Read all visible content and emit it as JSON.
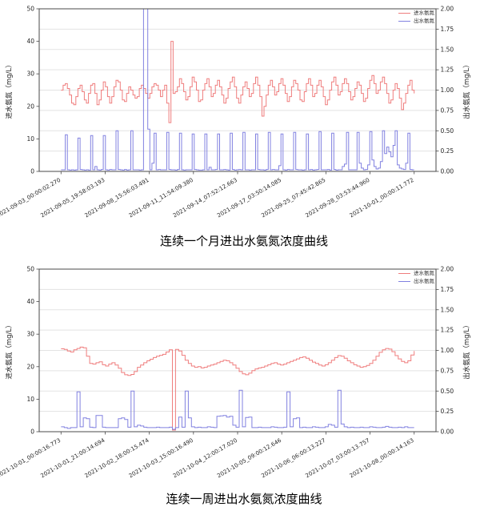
{
  "page": {
    "background": "#ffffff"
  },
  "style": {
    "influent_color": "#ef7d7d",
    "effluent_color": "#8181e0",
    "grid_color": "#e3e3e3",
    "spine_color": "#4a4a4a",
    "tick_text_color": "#262626"
  },
  "chart_data": [
    {
      "type": "line",
      "title": "连续一个月进出水氨氮浓度曲线",
      "xlabel": "",
      "ylabel_left": "进水氨氮（mg/L）",
      "ylabel_right": "出水氨氮（mg/L）",
      "ylim_left": [
        0,
        50
      ],
      "ylim_right": [
        0.0,
        2.0
      ],
      "yticks_left": [
        "0",
        "10",
        "20",
        "30",
        "40",
        "50"
      ],
      "yticks_right": [
        "0.00",
        "0.25",
        "0.50",
        "0.75",
        "1.00",
        "1.25",
        "1.50",
        "1.75",
        "2.00"
      ],
      "x_tick_labels": [
        "2021-09-03_00:00:02.270",
        "2021-09-05_19:58:03.193",
        "2021-09-08_15:56:03.491",
        "2021-09-11_11:54:09.380",
        "2021-09-14_07:52:12.663",
        "2021-09-17_03:50:14.085",
        "2021-09-25_07:45:42.865",
        "2021-09-28_03:53:44.960",
        "2021-10-01_00:00:11.772"
      ],
      "grid": "horizontal gridlines at every 0.25 of right axis",
      "legend_position": "upper right",
      "series": [
        {
          "name": "进水氨氮",
          "axis": "left",
          "color": "#ef7d7d",
          "values": [
            25,
            26.5,
            27,
            25.5,
            23.5,
            21,
            20.5,
            23,
            25.5,
            26.5,
            24.5,
            22,
            21,
            24,
            26.5,
            27,
            24,
            20.5,
            22,
            25,
            27.5,
            26,
            23,
            21,
            23,
            26,
            28,
            27.5,
            25,
            22,
            21.5,
            24,
            26,
            25,
            23.5,
            22.5,
            23,
            25.5,
            26.5,
            25.5,
            24,
            22.5,
            24,
            26,
            27,
            26.5,
            25,
            23,
            25,
            26.5,
            21,
            15,
            40,
            24,
            24.5,
            26,
            28.5,
            27,
            24.5,
            22,
            23,
            26,
            29,
            27.5,
            25,
            21.5,
            22,
            25,
            27,
            28.5,
            26,
            23,
            24,
            26.5,
            28,
            26,
            23.5,
            21,
            22.5,
            25.5,
            27.5,
            29,
            26,
            22.5,
            21,
            23.5,
            26,
            27.5,
            25.5,
            23,
            24,
            27,
            29,
            26.5,
            23,
            17,
            20,
            23.5,
            26.5,
            28,
            26,
            23.5,
            24.5,
            27,
            28.5,
            26.5,
            24,
            21.5,
            23,
            26,
            28,
            27,
            25,
            22,
            21.5,
            24.5,
            27,
            28.5,
            26.5,
            23,
            24,
            26.5,
            28,
            26,
            23,
            20.5,
            22,
            25,
            27.5,
            29,
            26.5,
            23.5,
            24.5,
            27,
            28.5,
            27,
            24.5,
            22,
            23,
            25.5,
            27.5,
            26.5,
            24,
            21.5,
            22.5,
            25.5,
            28,
            29.5,
            27,
            24,
            25,
            27.5,
            29,
            27,
            24,
            21,
            22,
            25,
            27,
            25.5,
            22.5,
            19,
            21,
            24,
            26.5,
            28,
            25,
            24
          ]
        },
        {
          "name": "出水氨氮",
          "axis": "right",
          "color": "#8181e0",
          "values": [
            0.02,
            0.02,
            0.45,
            0.02,
            0.016,
            0.02,
            0.016,
            0.02,
            0.41,
            0.024,
            0.02,
            0.016,
            0.02,
            0.016,
            0.44,
            0.02,
            0.06,
            0.02,
            0.016,
            0.024,
            0.44,
            0.02,
            0.016,
            0.024,
            0.02,
            0.02,
            0.5,
            0.024,
            0.02,
            0.016,
            0.024,
            0.016,
            0.02,
            0.5,
            0.02,
            0.02,
            0.02,
            0.016,
            0.02,
            2.02,
            2.02,
            0.52,
            0.02,
            0.1,
            0.47,
            0.02,
            0.024,
            0.02,
            0.02,
            0.02,
            0.48,
            0.024,
            0.02,
            0.02,
            0.016,
            0.024,
            0.47,
            0.02,
            0.016,
            0.02,
            0.02,
            0.02,
            0.46,
            0.024,
            0.02,
            0.016,
            0.016,
            0.02,
            0.46,
            0.02,
            0.05,
            0.02,
            0.02,
            0.024,
            0.46,
            0.02,
            0.02,
            0.024,
            0.02,
            0.016,
            0.47,
            0.024,
            0.016,
            0.02,
            0.024,
            0.02,
            0.48,
            0.02,
            0.02,
            0.016,
            0.02,
            0.02,
            0.46,
            0.024,
            0.02,
            0.02,
            0.016,
            0.024,
            0.48,
            0.02,
            0.024,
            0.02,
            0.02,
            0.07,
            0.46,
            0.02,
            0.016,
            0.024,
            0.02,
            0.02,
            0.48,
            0.024,
            0.02,
            0.02,
            0.016,
            0.02,
            0.46,
            0.02,
            0.024,
            0.016,
            0.02,
            0.024,
            0.49,
            0.02,
            0.02,
            0.02,
            0.024,
            0.016,
            0.47,
            0.024,
            0.016,
            0.02,
            0.02,
            0.06,
            0.09,
            0.48,
            0.02,
            0.02,
            0.02,
            0.02,
            0.48,
            0.1,
            0.04,
            0.02,
            0.024,
            0.08,
            0.49,
            0.14,
            0.06,
            0.03,
            0.04,
            0.12,
            0.5,
            0.22,
            0.3,
            0.24,
            0.18,
            0.32,
            0.5,
            0.08,
            0.04,
            0.03,
            0.024,
            0.1,
            0.47,
            0.024,
            0.02,
            0.02
          ]
        }
      ]
    },
    {
      "type": "line",
      "title": "连续一周进出水氨氮浓度曲线",
      "xlabel": "",
      "ylabel_left": "进水氨氮（mg/L）",
      "ylabel_right": "出水氨氮（mg/L）",
      "ylim_left": [
        0,
        50
      ],
      "ylim_right": [
        0.0,
        2.0
      ],
      "yticks_left": [
        "0",
        "10",
        "20",
        "30",
        "40",
        "50"
      ],
      "yticks_right": [
        "0.00",
        "0.25",
        "0.50",
        "0.75",
        "1.00",
        "1.25",
        "1.50",
        "1.75",
        "2.00"
      ],
      "x_tick_labels": [
        "2021-10-01_00:00:16.773",
        "2021-10-01_21:00:14.694",
        "2021-10-02_18:00:15.474",
        "2021-10-03_15:00:16.490",
        "2021-10-04_12:00:17.020",
        "2021-10-05_09:00:12.646",
        "2021-10-06_06:00:13.227",
        "2021-10-07_03:00:13.757",
        "2021-10-08_00:00:14.163"
      ],
      "grid": "horizontal gridlines at every 0.25 of right axis",
      "legend_position": "upper right",
      "series": [
        {
          "name": "进水氨氮",
          "axis": "left",
          "color": "#ef7d7d",
          "values": [
            25.5,
            25.3,
            24.8,
            24.5,
            25.2,
            25.6,
            26,
            25.8,
            23.2,
            21,
            20.8,
            21.2,
            21.5,
            20.6,
            20.2,
            20.8,
            21.2,
            20.5,
            19.5,
            18.2,
            17.5,
            17.3,
            17.6,
            18.5,
            19.8,
            20.5,
            21.2,
            21.8,
            22.3,
            22.8,
            23.2,
            23.5,
            23.8,
            24.5,
            25.2,
            0.5,
            25.3,
            24.8,
            23.5,
            22,
            21,
            20.2,
            19.8,
            20,
            19.6,
            19.8,
            20.2,
            20.5,
            20.8,
            21.2,
            21.6,
            22,
            21.8,
            21.2,
            20.5,
            19.5,
            18.5,
            17.8,
            17.5,
            18,
            18.8,
            19.3,
            19.6,
            19.8,
            20.2,
            20.6,
            21,
            21.2,
            20.8,
            20.5,
            20.8,
            21.2,
            21.6,
            22,
            22.4,
            22.8,
            23,
            22.6,
            22,
            21.4,
            21,
            20.5,
            20.2,
            20.6,
            21.2,
            22,
            22.8,
            23.4,
            23.2,
            22.6,
            21.8,
            21.2,
            20.6,
            20.2,
            19.8,
            20,
            20.4,
            21,
            22,
            23.2,
            24.4,
            25.2,
            25.6,
            25.4,
            24.6,
            23.4,
            22.4,
            21.6,
            21.2,
            21.8,
            23.6,
            24.8
          ]
        },
        {
          "name": "出水氨氮",
          "axis": "right",
          "color": "#8181e0",
          "values": [
            0.06,
            0.05,
            0.04,
            0.05,
            0.05,
            0.49,
            0.06,
            0.17,
            0.16,
            0.055,
            0.05,
            0.2,
            0.2,
            0.055,
            0.05,
            0.05,
            0.05,
            0.05,
            0.16,
            0.17,
            0.15,
            0.055,
            0.5,
            0.06,
            0.08,
            0.07,
            0.055,
            0.05,
            0.05,
            0.05,
            0.055,
            0.05,
            0.05,
            0.05,
            0.055,
            0.03,
            0.05,
            0.18,
            0.055,
            0.5,
            0.17,
            0.06,
            0.05,
            0.055,
            0.05,
            0.05,
            0.06,
            0.055,
            0.05,
            0.19,
            0.195,
            0.2,
            0.18,
            0.19,
            0.08,
            0.055,
            0.51,
            0.06,
            0.175,
            0.18,
            0.05,
            0.05,
            0.055,
            0.05,
            0.05,
            0.05,
            0.06,
            0.055,
            0.05,
            0.05,
            0.055,
            0.49,
            0.06,
            0.16,
            0.17,
            0.05,
            0.055,
            0.05,
            0.05,
            0.06,
            0.055,
            0.05,
            0.05,
            0.06,
            0.09,
            0.08,
            0.055,
            0.51,
            0.095,
            0.06,
            0.05,
            0.055,
            0.05,
            0.05,
            0.055,
            0.05,
            0.05,
            0.06,
            0.055,
            0.05,
            0.05,
            0.055,
            0.065,
            0.055,
            0.05,
            0.05,
            0.055,
            0.05,
            0.06,
            0.05,
            0.05,
            0.05
          ]
        }
      ]
    }
  ]
}
